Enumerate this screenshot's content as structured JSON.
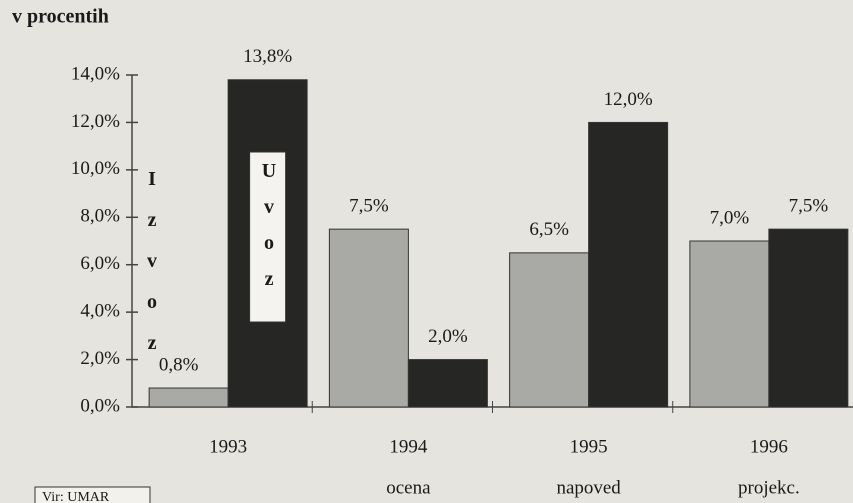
{
  "chart_data": {
    "type": "bar",
    "title": "v procentih",
    "source": "Vir: UMAR",
    "categories": [
      "1993",
      "1994",
      "1995",
      "1996"
    ],
    "category_notes": [
      null,
      "ocena",
      "napoved",
      "projekc."
    ],
    "series": [
      {
        "name": "Izvoz",
        "color": "#a9a9a6",
        "values": [
          0.8,
          7.5,
          6.5,
          7.0
        ],
        "value_labels": [
          "0,8%",
          "7,5%",
          "6,5%",
          "7,0%"
        ]
      },
      {
        "name": "Uvoz",
        "color": "#262624",
        "values": [
          13.8,
          2.0,
          12.0,
          7.5
        ],
        "value_labels": [
          "13,8%",
          "2,0%",
          "12,0%",
          "7,5%"
        ]
      }
    ],
    "ylim": [
      0,
      14
    ],
    "yticks": [
      {
        "value": 0,
        "label": "0,0%"
      },
      {
        "value": 2,
        "label": "2,0%"
      },
      {
        "value": 4,
        "label": "4,0%"
      },
      {
        "value": 6,
        "label": "6,0%"
      },
      {
        "value": 8,
        "label": "8,0%"
      },
      {
        "value": 10,
        "label": "10,0%"
      },
      {
        "value": 12,
        "label": "12,0%"
      },
      {
        "value": 14,
        "label": "14,0%"
      }
    ],
    "grid": false
  }
}
